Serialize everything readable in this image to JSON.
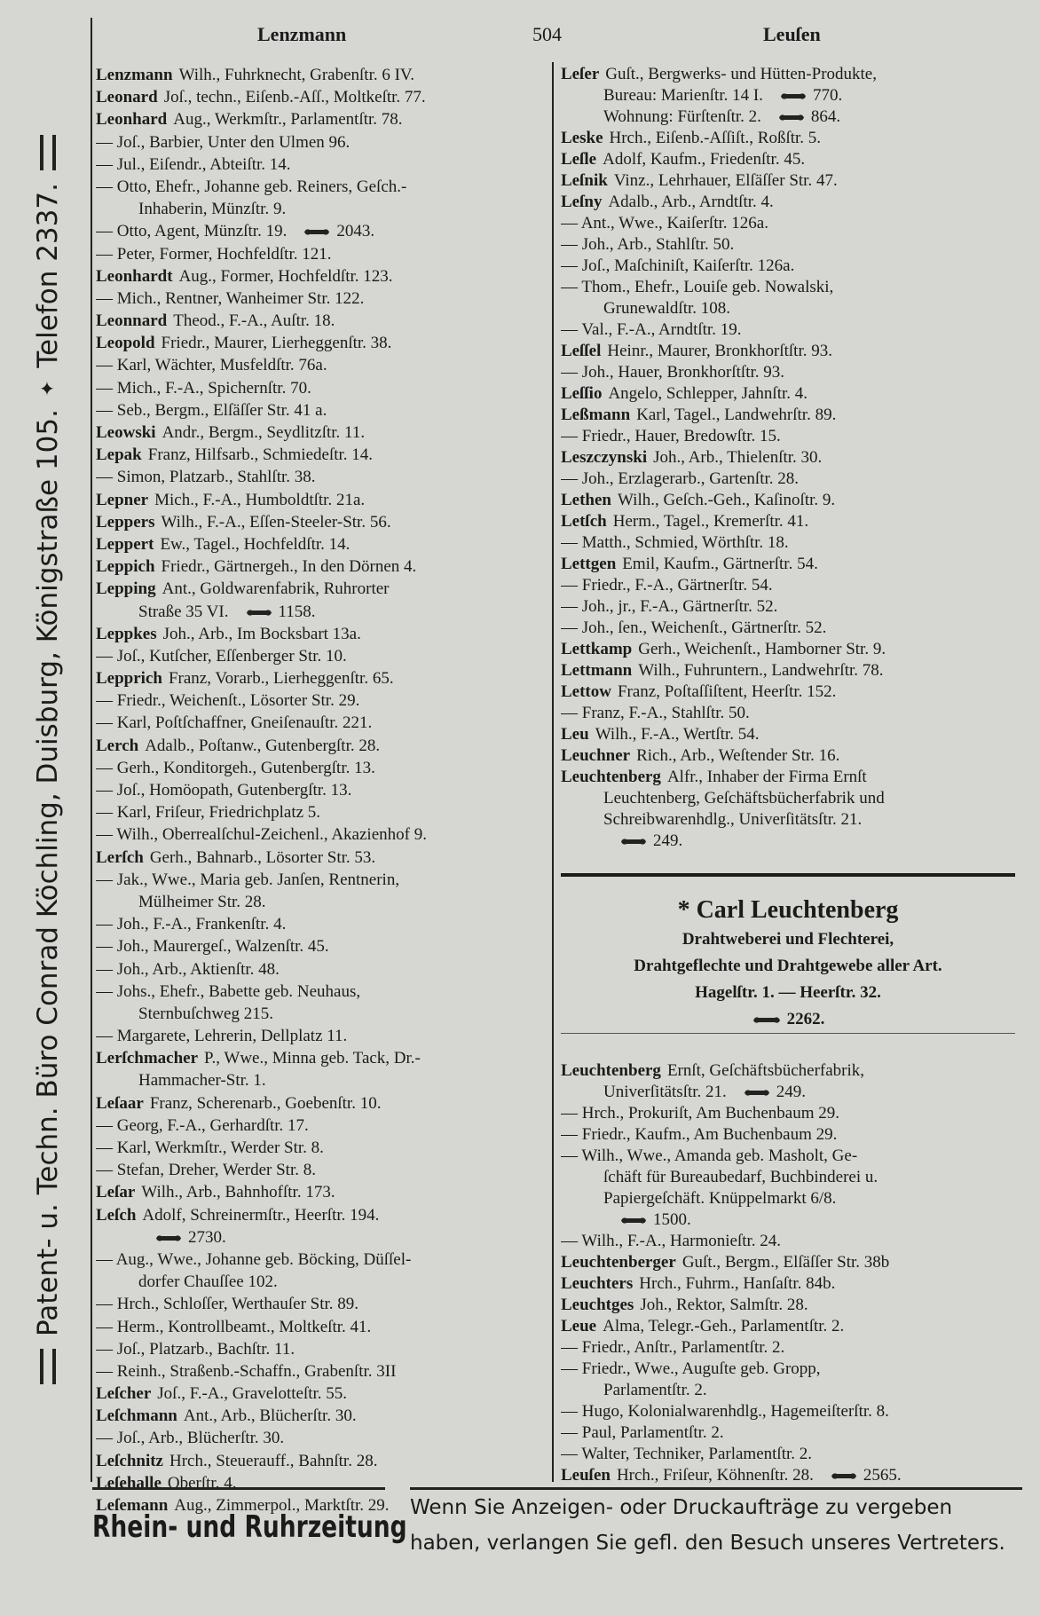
{
  "header": {
    "left": "Lenzmann",
    "page": "504",
    "right": "Leuſen"
  },
  "side_banner": {
    "main": "Patent- u. Techn. Büro Conrad Köchling, Duisburg, Königstraße 105.",
    "phone": "Telefon 2337."
  },
  "left_column": [
    {
      "name": "Lenzmann",
      "lines": [
        "Wilh., Fuhrknecht, Grabenſtr. 6 IV."
      ]
    },
    {
      "name": "Leonard",
      "lines": [
        "Joſ., techn., Eiſenb.-Aſſ., Moltkeſtr. 77."
      ]
    },
    {
      "name": "Leonhard",
      "lines": [
        "Aug., Werkmſtr., Parlamentſtr. 78."
      ]
    },
    {
      "lines": [
        "— Joſ., Barbier, Unter den Ulmen 96."
      ]
    },
    {
      "lines": [
        "— Jul., Eiſendr., Abteiſtr. 14."
      ]
    },
    {
      "lines": [
        "— Otto, Ehefr., Johanne geb. Reiners, Geſch.-",
        "Inhaberin, Münzſtr. 9."
      ]
    },
    {
      "lines": [
        {
          "text": "— Otto, Agent, Münzſtr. 19.",
          "phone": "2043."
        }
      ]
    },
    {
      "lines": [
        "— Peter, Former, Hochfeldſtr. 121."
      ]
    },
    {
      "name": "Leonhardt",
      "lines": [
        "Aug., Former, Hochfeldſtr. 123."
      ]
    },
    {
      "lines": [
        "— Mich., Rentner, Wanheimer Str. 122."
      ]
    },
    {
      "name": "Leonnard",
      "lines": [
        "Theod., F.-A., Auſtr. 18."
      ]
    },
    {
      "name": "Leopold",
      "lines": [
        "Friedr., Maurer, Lierheggenſtr. 38."
      ]
    },
    {
      "lines": [
        "— Karl, Wächter, Musfeldſtr. 76a."
      ]
    },
    {
      "lines": [
        "— Mich., F.-A., Spichernſtr. 70."
      ]
    },
    {
      "lines": [
        "— Seb., Bergm., Elſäſſer Str. 41 a."
      ]
    },
    {
      "name": "Leowski",
      "lines": [
        "Andr., Bergm., Seydlitzſtr. 11."
      ]
    },
    {
      "name": "Lepak",
      "lines": [
        "Franz, Hilfsarb., Schmiedeſtr. 14."
      ]
    },
    {
      "lines": [
        "— Simon, Platzarb., Stahlſtr. 38."
      ]
    },
    {
      "name": "Lepner",
      "lines": [
        "Mich., F.-A., Humboldtſtr. 21a."
      ]
    },
    {
      "name": "Leppers",
      "lines": [
        "Wilh., F.-A., Eſſen-Steeler-Str. 56."
      ]
    },
    {
      "name": "Leppert",
      "lines": [
        "Ew., Tagel., Hochfeldſtr. 14."
      ]
    },
    {
      "name": "Leppich",
      "lines": [
        "Friedr., Gärtnergeh., In den Dörnen 4."
      ]
    },
    {
      "name": "Lepping",
      "lines": [
        "Ant., Goldwarenfabrik, Ruhrorter",
        {
          "text": "Straße 35 VI.",
          "phone": "1158."
        }
      ]
    },
    {
      "name": "Leppkes",
      "lines": [
        "Joh., Arb., Im Bocksbart 13a."
      ]
    },
    {
      "lines": [
        "— Joſ., Kutſcher, Eſſenberger Str. 10."
      ]
    },
    {
      "name": "Lepprich",
      "lines": [
        "Franz, Vorarb., Lierheggenſtr. 65."
      ]
    },
    {
      "lines": [
        "— Friedr., Weichenſt., Lösorter Str. 29."
      ]
    },
    {
      "lines": [
        "— Karl, Poſtſchaffner, Gneiſenauſtr. 221."
      ]
    },
    {
      "name": "Lerch",
      "lines": [
        "Adalb., Poſtanw., Gutenbergſtr. 28."
      ]
    },
    {
      "lines": [
        "— Gerh., Konditorgeh., Gutenbergſtr. 13."
      ]
    },
    {
      "lines": [
        "— Joſ., Homöopath, Gutenbergſtr. 13."
      ]
    },
    {
      "lines": [
        "— Karl, Friſeur, Friedrichplatz 5."
      ]
    },
    {
      "lines": [
        "— Wilh., Oberrealſchul-Zeichenl., Akazienhof 9."
      ]
    },
    {
      "name": "Lerſch",
      "lines": [
        "Gerh., Bahnarb., Lösorter Str. 53."
      ]
    },
    {
      "lines": [
        "— Jak., Wwe., Maria geb. Janſen, Rentnerin,",
        "Mülheimer Str. 28."
      ]
    },
    {
      "lines": [
        "— Joh., F.-A., Frankenſtr. 4."
      ]
    },
    {
      "lines": [
        "— Joh., Maurergeſ., Walzenſtr. 45."
      ]
    },
    {
      "lines": [
        "— Joh., Arb., Aktienſtr. 48."
      ]
    },
    {
      "lines": [
        "— Johs., Ehefr., Babette geb. Neuhaus,",
        "Sternbuſchweg 215."
      ]
    },
    {
      "lines": [
        "— Margarete, Lehrerin, Dellplatz 11."
      ]
    },
    {
      "name": "Lerſchmacher",
      "lines": [
        "P., Wwe., Minna geb. Tack, Dr.-",
        "Hammacher-Str. 1."
      ]
    },
    {
      "name": "Leſaar",
      "lines": [
        "Franz, Scherenarb., Goebenſtr. 10."
      ]
    },
    {
      "lines": [
        "— Georg, F.-A., Gerhardſtr. 17."
      ]
    },
    {
      "lines": [
        "— Karl, Werkmſtr., Werder Str. 8."
      ]
    },
    {
      "lines": [
        "— Stefan, Dreher, Werder Str. 8."
      ]
    },
    {
      "name": "Leſar",
      "lines": [
        "Wilh., Arb., Bahnhofſtr. 173."
      ]
    },
    {
      "name": "Leſch",
      "lines": [
        "Adolf, Schreinermſtr., Heerſtr. 194.",
        {
          "phone": "2730."
        }
      ]
    },
    {
      "lines": [
        "— Aug., Wwe., Johanne geb. Böcking, Düſſel-",
        "dorfer Chauſſee 102."
      ]
    },
    {
      "lines": [
        "— Hrch., Schloſſer, Werthauſer Str. 89."
      ]
    },
    {
      "lines": [
        "— Herm., Kontrollbeamt., Moltkeſtr. 41."
      ]
    },
    {
      "lines": [
        "— Joſ., Platzarb., Bachſtr. 11."
      ]
    },
    {
      "lines": [
        "— Reinh., Straßenb.-Schaffn., Grabenſtr. 3II"
      ]
    },
    {
      "name": "Leſcher",
      "lines": [
        "Joſ., F.-A., Gravelotteſtr. 55."
      ]
    },
    {
      "name": "Leſchmann",
      "lines": [
        "Ant., Arb., Blücherſtr. 30."
      ]
    },
    {
      "lines": [
        "— Joſ., Arb., Blücherſtr. 30."
      ]
    },
    {
      "name": "Leſchnitz",
      "lines": [
        "Hrch., Steuerauff., Bahnſtr. 28."
      ]
    },
    {
      "name": "Leſehalle",
      "lines": [
        "Oberſtr. 4."
      ]
    },
    {
      "name": "Leſemann",
      "lines": [
        "Aug., Zimmerpol., Marktſtr. 29."
      ]
    }
  ],
  "right_column_upper": [
    {
      "name": "Leſer",
      "lines": [
        "Guſt., Bergwerks- und Hütten-Produkte,",
        {
          "text": "Bureau: Marienſtr. 14 I.",
          "phone": "770."
        },
        {
          "text": "Wohnung: Fürſtenſtr. 2.",
          "phone": "864."
        }
      ]
    },
    {
      "name": "Leske",
      "lines": [
        "Hrch., Eiſenb.-Aſſiſt., Roßſtr. 5."
      ]
    },
    {
      "name": "Leſle",
      "lines": [
        "Adolf, Kaufm., Friedenſtr. 45."
      ]
    },
    {
      "name": "Leſnik",
      "lines": [
        "Vinz., Lehrhauer, Elſäſſer Str. 47."
      ]
    },
    {
      "name": "Leſny",
      "lines": [
        "Adalb., Arb., Arndtſtr. 4."
      ]
    },
    {
      "lines": [
        "— Ant., Wwe., Kaiſerſtr. 126a."
      ]
    },
    {
      "lines": [
        "— Joh., Arb., Stahlſtr. 50."
      ]
    },
    {
      "lines": [
        "— Joſ., Maſchiniſt, Kaiſerſtr. 126a."
      ]
    },
    {
      "lines": [
        "— Thom., Ehefr., Louiſe geb. Nowalski,",
        "Grunewaldſtr. 108."
      ]
    },
    {
      "lines": [
        "— Val., F.-A., Arndtſtr. 19."
      ]
    },
    {
      "name": "Leſſel",
      "lines": [
        "Heinr., Maurer, Bronkhorſtſtr. 93."
      ]
    },
    {
      "lines": [
        "— Joh., Hauer, Bronkhorſtſtr. 93."
      ]
    },
    {
      "name": "Leſſio",
      "lines": [
        "Angelo, Schlepper, Jahnſtr. 4."
      ]
    },
    {
      "name": "Leßmann",
      "lines": [
        "Karl, Tagel., Landwehrſtr. 89."
      ]
    },
    {
      "lines": [
        "— Friedr., Hauer, Bredowſtr. 15."
      ]
    },
    {
      "name": "Leszczynski",
      "lines": [
        "Joh., Arb., Thielenſtr. 30."
      ]
    },
    {
      "lines": [
        "— Joh., Erzlagerarb., Gartenſtr. 28."
      ]
    },
    {
      "name": "Lethen",
      "lines": [
        "Wilh., Geſch.-Geh., Kaſinoſtr. 9."
      ]
    },
    {
      "name": "Letſch",
      "lines": [
        "Herm., Tagel., Kremerſtr. 41."
      ]
    },
    {
      "lines": [
        "— Matth., Schmied, Wörthſtr. 18."
      ]
    },
    {
      "name": "Lettgen",
      "lines": [
        "Emil, Kaufm., Gärtnerſtr. 54."
      ]
    },
    {
      "lines": [
        "— Friedr., F.-A., Gärtnerſtr. 54."
      ]
    },
    {
      "lines": [
        "— Joh., jr., F.-A., Gärtnerſtr. 52."
      ]
    },
    {
      "lines": [
        "— Joh., ſen., Weichenſt., Gärtnerſtr. 52."
      ]
    },
    {
      "name": "Lettkamp",
      "lines": [
        "Gerh., Weichenſt., Hamborner Str. 9."
      ]
    },
    {
      "name": "Lettmann",
      "lines": [
        "Wilh., Fuhruntern., Landwehrſtr. 78."
      ]
    },
    {
      "name": "Lettow",
      "lines": [
        "Franz, Poſtaſſiſtent, Heerſtr. 152."
      ]
    },
    {
      "lines": [
        "— Franz, F.-A., Stahlſtr. 50."
      ]
    },
    {
      "name": "Leu",
      "lines": [
        "Wilh., F.-A., Wertſtr. 54."
      ]
    },
    {
      "name": "Leuchner",
      "lines": [
        "Rich., Arb., Weſtender Str. 16."
      ]
    },
    {
      "name": "Leuchtenberg",
      "lines": [
        "Alfr., Inhaber der Firma Ernſt",
        "Leuchtenberg, Geſchäftsbücherfabrik und",
        "Schreibwarenhdlg., Univerſitätsſtr. 21.",
        {
          "phone": "249."
        }
      ]
    }
  ],
  "advertisement": {
    "title": "* Carl Leuchtenberg",
    "line1": "Drahtweberei und Flechterei,",
    "line2": "Drahtgeflechte und Drahtgewebe aller Art.",
    "line3": "Hagelſtr. 1. — Heerſtr. 32.",
    "phone": "2262."
  },
  "right_column_lower": [
    {
      "name": "Leuchtenberg",
      "lines": [
        "Ernſt, Geſchäftsbücherfabrik,",
        {
          "text": "Univerſitätsſtr. 21.",
          "phone": "249."
        }
      ]
    },
    {
      "lines": [
        "— Hrch., Prokuriſt, Am Buchenbaum 29."
      ]
    },
    {
      "lines": [
        "— Friedr., Kaufm., Am Buchenbaum 29."
      ]
    },
    {
      "lines": [
        "— Wilh., Wwe., Amanda geb. Masholt, Ge-",
        "ſchäft für Bureaubedarf, Buchbinderei u.",
        "Papiergeſchäft. Knüppelmarkt 6/8.",
        {
          "phone": "1500."
        }
      ]
    },
    {
      "lines": [
        "— Wilh., F.-A., Harmonieſtr. 24."
      ]
    },
    {
      "name": "Leuchtenberger",
      "lines": [
        "Guſt., Bergm., Elſäſſer Str. 38b"
      ]
    },
    {
      "name": "Leuchters",
      "lines": [
        "Hrch., Fuhrm., Hanſaſtr. 84b."
      ]
    },
    {
      "name": "Leuchtges",
      "lines": [
        "Joh., Rektor, Salmſtr. 28."
      ]
    },
    {
      "name": "Leue",
      "lines": [
        "Alma, Telegr.-Geh., Parlamentſtr. 2."
      ]
    },
    {
      "lines": [
        "— Friedr., Anſtr., Parlamentſtr. 2."
      ]
    },
    {
      "lines": [
        "— Friedr., Wwe., Auguſte geb. Gropp,",
        "Parlamentſtr. 2."
      ]
    },
    {
      "lines": [
        "— Hugo, Kolonialwarenhdlg., Hagemeiſterſtr. 8."
      ]
    },
    {
      "lines": [
        "— Paul, Parlamentſtr. 2."
      ]
    },
    {
      "lines": [
        "— Walter, Techniker, Parlamentſtr. 2."
      ]
    },
    {
      "name": "Leuſen",
      "lines": [
        {
          "text": "Hrch., Friſeur, Köhnenſtr. 28.",
          "phone": "2565."
        }
      ]
    }
  ],
  "footer": {
    "brand": "Rhein- und Ruhrzeitung",
    "line1": "Wenn Sie Anzeigen- oder Druckaufträge zu vergeben",
    "line2": "haben, verlangen Sie gefl. den Besuch unseres Vertreters."
  }
}
